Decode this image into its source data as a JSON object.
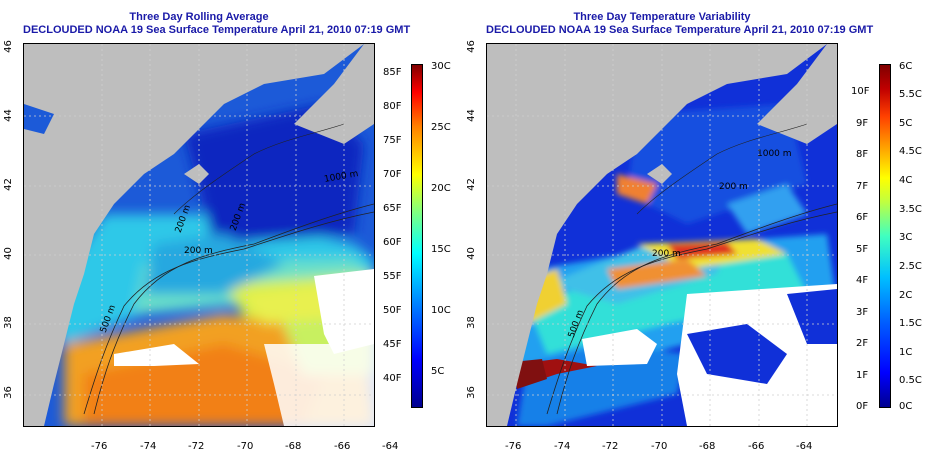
{
  "panels": [
    {
      "title_line1": "Three Day Rolling Average",
      "title_line2": "DECLOUDED NOAA 19 Sea Surface Temperature April 21, 2010 07:19 GMT",
      "lon_ticks": [
        "-76",
        "-74",
        "-72",
        "-70",
        "-68",
        "-66",
        "-64"
      ],
      "lat_ticks": [
        "36",
        "38",
        "40",
        "42",
        "44",
        "46"
      ],
      "contour_labels": [
        "1000 m",
        "200 m",
        "200 m",
        "200 m",
        "500 m"
      ],
      "colorbar_f_ticks": [
        "85F",
        "80F",
        "75F",
        "70F",
        "65F",
        "60F",
        "55F",
        "50F",
        "45F",
        "40F"
      ],
      "colorbar_c_ticks": [
        "30C",
        "25C",
        "20C",
        "15C",
        "10C",
        "5C"
      ]
    },
    {
      "title_line1": "Three Day Temperature Variability",
      "title_line2": "DECLOUDED NOAA 19 Sea Surface Temperature April 21, 2010 07:19 GMT",
      "lon_ticks": [
        "-76",
        "-74",
        "-72",
        "-70",
        "-68",
        "-66",
        "-64"
      ],
      "lat_ticks": [
        "36",
        "38",
        "40",
        "42",
        "44",
        "46"
      ],
      "contour_labels": [
        "1000 m",
        "200 m",
        "200 m",
        "500 m"
      ],
      "colorbar_f_ticks": [
        "10F",
        "9F",
        "8F",
        "7F",
        "6F",
        "5F",
        "4F",
        "3F",
        "2F",
        "1F",
        "0F"
      ],
      "colorbar_c_ticks": [
        "6C",
        "5.5C",
        "5C",
        "4.5C",
        "4C",
        "3.5C",
        "3C",
        "2.5C",
        "2C",
        "1.5C",
        "1C",
        "0.5C",
        "0C"
      ]
    }
  ],
  "colors": {
    "land": "#bebebe",
    "no_data": "#ffffff",
    "title": "#1a1aa8"
  }
}
